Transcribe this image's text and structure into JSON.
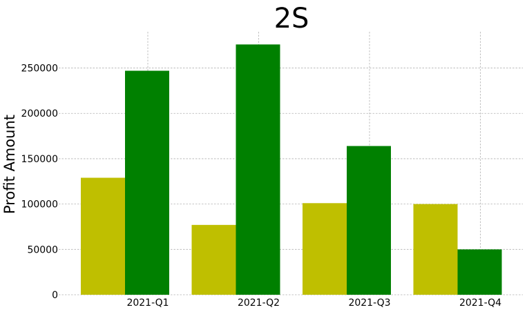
{
  "chart_data": {
    "type": "bar",
    "title": "2S",
    "xlabel": "",
    "ylabel": "Profit Amount",
    "categories": [
      "2021-Q1",
      "2021-Q2",
      "2021-Q3",
      "2021-Q4"
    ],
    "series": [
      {
        "values": [
          129000,
          77000,
          101000,
          100000
        ],
        "color": "#bfbf00"
      },
      {
        "values": [
          247000,
          276000,
          164000,
          50000
        ],
        "color": "#008000"
      }
    ],
    "yticks": [
      0,
      50000,
      100000,
      150000,
      200000,
      250000
    ],
    "ylim": [
      0,
      290000
    ],
    "grid": true,
    "legend": "none"
  }
}
